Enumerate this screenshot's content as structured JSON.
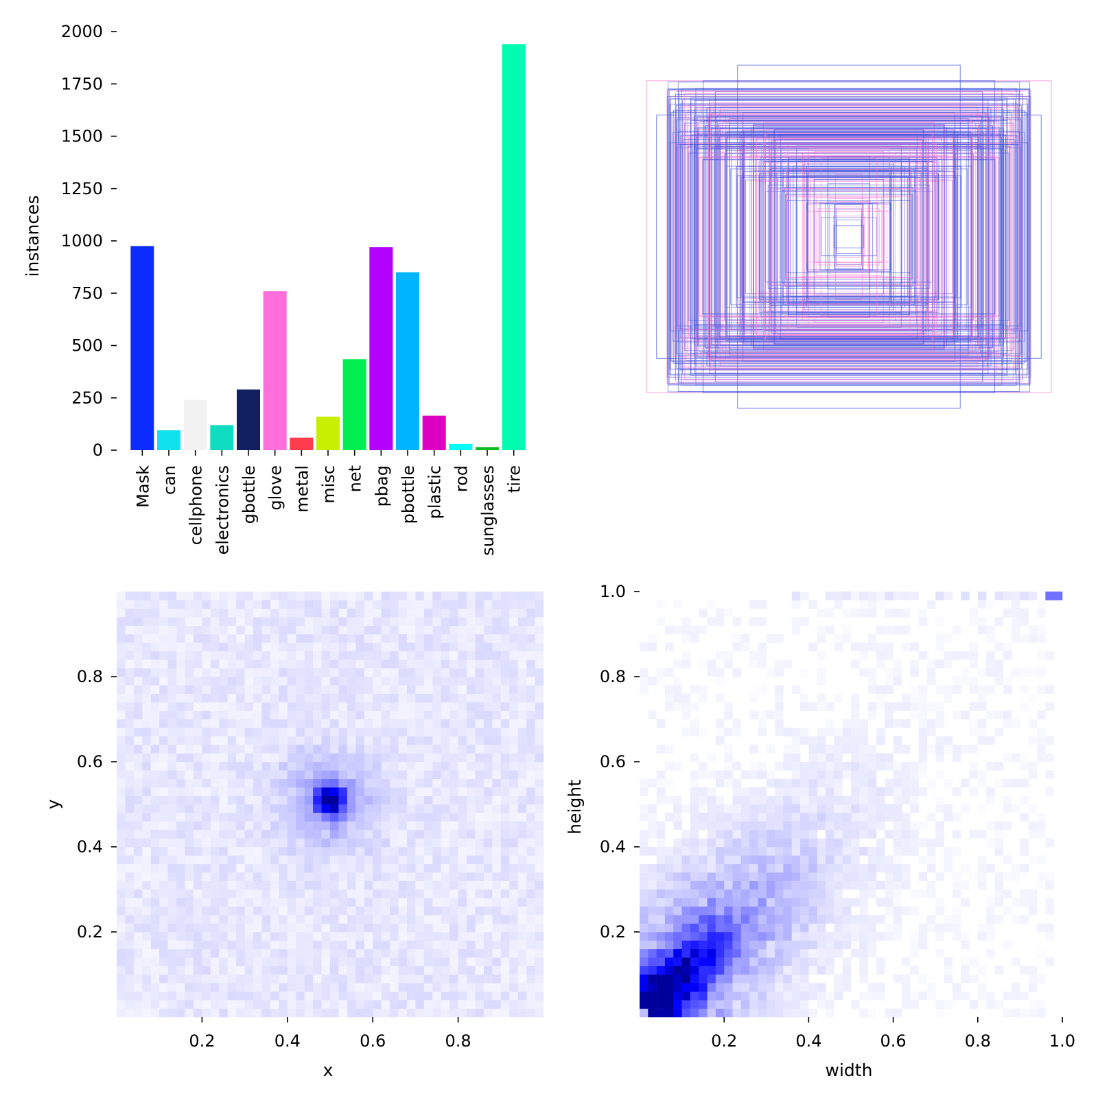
{
  "chart_data": [
    {
      "type": "bar",
      "ylabel": "instances",
      "ylim": [
        0,
        2000
      ],
      "yticks": [
        0,
        250,
        500,
        750,
        1000,
        1250,
        1500,
        1750,
        2000
      ],
      "categories": [
        "Mask",
        "can",
        "cellphone",
        "electronics",
        "gbottle",
        "glove",
        "metal",
        "misc",
        "net",
        "pbag",
        "pbottle",
        "plastic",
        "rod",
        "sunglasses",
        "tire"
      ],
      "values": [
        975,
        95,
        240,
        120,
        290,
        760,
        60,
        160,
        435,
        970,
        850,
        165,
        30,
        15,
        1940
      ],
      "colors": [
        "#0b2bff",
        "#11e0ee",
        "#f2f2f2",
        "#0fdcc0",
        "#132060",
        "#ff6fdc",
        "#ff3c4e",
        "#c8ee00",
        "#00ee50",
        "#b300ff",
        "#00b4ff",
        "#dd00c0",
        "#00fcff",
        "#11bb22",
        "#00fcb0"
      ]
    },
    {
      "type": "rectangles",
      "description_colors": [
        "#3a4fdc",
        "#ff78d0"
      ],
      "xlim": [
        0,
        1
      ],
      "ylim": [
        0,
        1
      ]
    },
    {
      "type": "heatmap",
      "xlabel": "x",
      "ylabel": "y",
      "xlim": [
        0,
        1
      ],
      "ylim": [
        0,
        1
      ],
      "xticks": [
        0.2,
        0.4,
        0.6,
        0.8
      ],
      "yticks": [
        0.2,
        0.4,
        0.6,
        0.8
      ],
      "peak": [
        0.5,
        0.51
      ]
    },
    {
      "type": "heatmap",
      "xlabel": "width",
      "ylabel": "height",
      "xlim": [
        0,
        1
      ],
      "ylim": [
        0,
        1
      ],
      "xticks": [
        0.2,
        0.4,
        0.6,
        0.8,
        1.0
      ],
      "yticks": [
        0.2,
        0.4,
        0.6,
        0.8,
        1.0
      ],
      "peak": [
        0.1,
        0.1
      ]
    }
  ]
}
